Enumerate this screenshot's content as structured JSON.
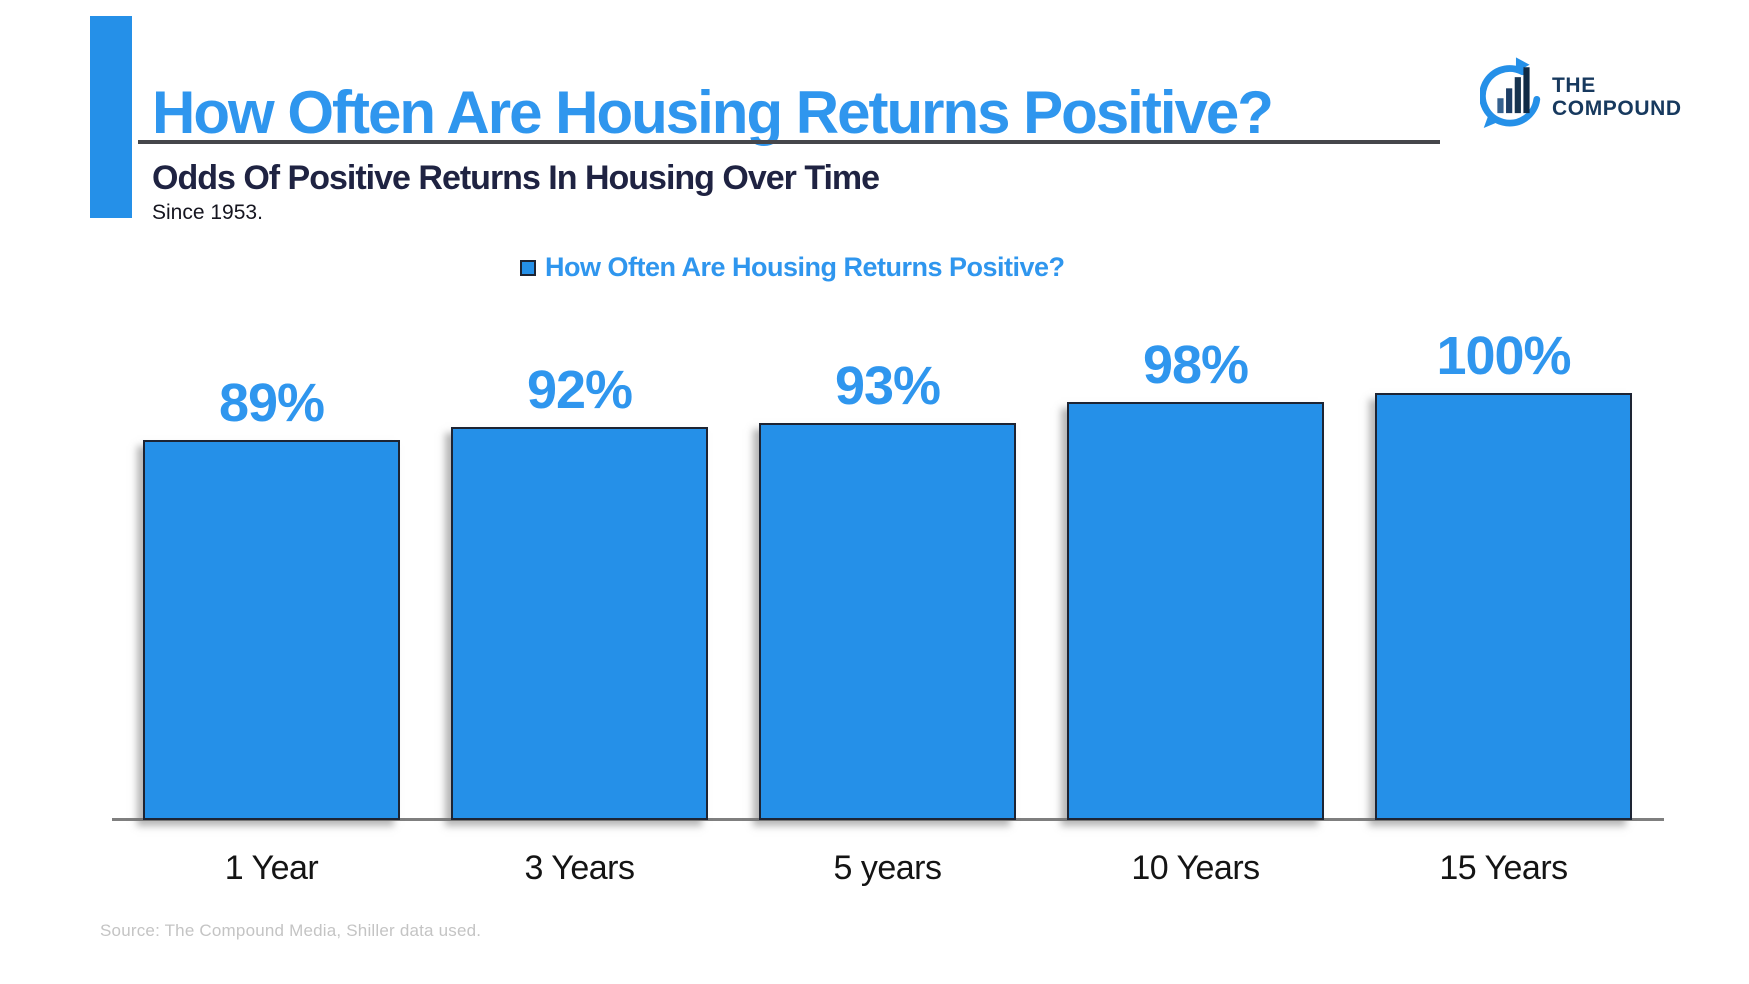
{
  "page": {
    "title": "How Often Are Housing Returns Positive?",
    "subtitle": "Odds Of Positive Returns In Housing Over Time",
    "subnote": "Since 1953.",
    "source": "Source: The Compound Media, Shiller data used.",
    "logo": {
      "line1": "THE",
      "line2": "COMPOUND",
      "icon": "compound-chart-bubble-icon"
    }
  },
  "legend": {
    "label": "How Often Are Housing Returns Positive?"
  },
  "colors": {
    "accent_blue": "#2f96ee",
    "bar_blue": "#2590e8",
    "border_navy": "#1d2433",
    "text_navy": "#1f2342",
    "logo_navy": "#17395e",
    "underline_gray": "#45464b",
    "axis_gray": "#7f7f7f",
    "source_gray": "#c4c4c4"
  },
  "chart_data": {
    "type": "bar",
    "title": "How Often Are Housing Returns Positive?",
    "categories": [
      "1 Year",
      "3 Years",
      "5 years",
      "10 Years",
      "15 Years"
    ],
    "values": [
      89,
      92,
      93,
      98,
      100
    ],
    "value_labels": [
      "89%",
      "92%",
      "93%",
      "98%",
      "100%"
    ],
    "series_name": "How Often Are Housing Returns Positive?",
    "xlabel": "",
    "ylabel": "",
    "ylim": [
      0,
      100
    ],
    "grid": false,
    "legend_position": "top-center",
    "bar_color": "#2590e8",
    "label_color": "#2f96ee"
  }
}
